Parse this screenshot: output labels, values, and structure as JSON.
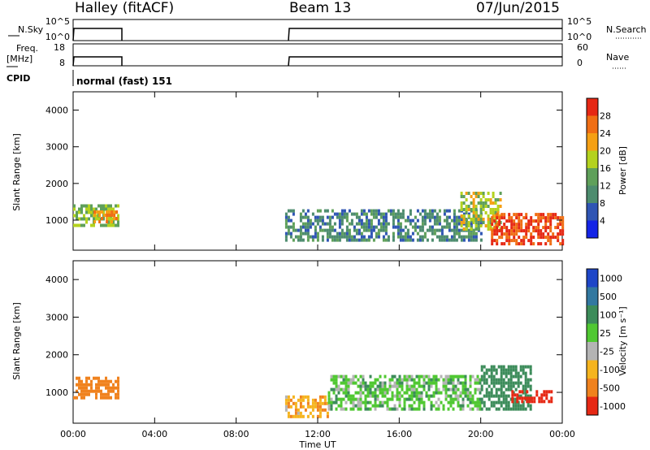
{
  "header": {
    "station": "Halley (fitACF)",
    "beam": "Beam 13",
    "date": "07/Jun/2015"
  },
  "sky_panel": {
    "label": "N.Sky",
    "left_ticks": [
      "10^5",
      "10^0"
    ],
    "right_ticks": [
      "10^5",
      "10^0"
    ],
    "right_label": "N.Search"
  },
  "freq_panel": {
    "label_line1": "Freq.",
    "label_line2": "[MHz]",
    "left_ticks": [
      "18",
      "8"
    ],
    "right_ticks": [
      "60",
      "0"
    ],
    "right_label": "Nave"
  },
  "cpid": {
    "label": "CPID",
    "mode": "normal (fast) 151"
  },
  "x_axis": {
    "title": "Time UT",
    "ticks": [
      "00:00",
      "04:00",
      "08:00",
      "12:00",
      "16:00",
      "20:00",
      "00:00"
    ]
  },
  "y_axis": {
    "title": "Slant Range [km]",
    "ticks": [
      "1000",
      "2000",
      "3000",
      "4000"
    ]
  },
  "power_colorbar": {
    "title": "Power [dB]",
    "ticks": [
      "4",
      "8",
      "12",
      "16",
      "20",
      "24",
      "28"
    ],
    "colors": [
      "#1424e6",
      "#2f55b4",
      "#4d8c6e",
      "#5fa05a",
      "#b4d21e",
      "#f5a014",
      "#f06e14",
      "#e62814"
    ]
  },
  "velocity_colorbar": {
    "title": "Velocity [m s⁻¹]",
    "ticks": [
      "1000",
      "500",
      "100",
      "25",
      "-25",
      "-100",
      "-500",
      "-1000"
    ],
    "colors": [
      "#1e46c8",
      "#3278a0",
      "#3c8c5a",
      "#50c832",
      "#b4b4b4",
      "#f5b41e",
      "#f0821e",
      "#e62814"
    ]
  },
  "chart_data": {
    "type": "heatmap",
    "x_range_hours": [
      0,
      24
    ],
    "y_range_km": [
      180,
      4500
    ],
    "data_gaps_hours": [
      [
        2.3,
        10.4
      ]
    ],
    "power_regions": [
      {
        "t": [
          0.0,
          2.25
        ],
        "range_km": [
          900,
          1500
        ],
        "level_db": 16
      },
      {
        "t": [
          1.0,
          2.1
        ],
        "range_km": [
          1000,
          1300
        ],
        "level_db": 24
      },
      {
        "t": [
          10.4,
          20.0
        ],
        "range_km": [
          500,
          1300
        ],
        "level_db": 10
      },
      {
        "t": [
          19.0,
          21.0
        ],
        "range_km": [
          800,
          1800
        ],
        "level_db": 18
      },
      {
        "t": [
          20.5,
          24.0
        ],
        "range_km": [
          400,
          1200
        ],
        "level_db": 28
      }
    ],
    "velocity_regions": [
      {
        "t": [
          0.0,
          2.25
        ],
        "range_km": [
          900,
          1500
        ],
        "velocity_ms": -300
      },
      {
        "t": [
          10.4,
          12.5
        ],
        "range_km": [
          400,
          1000
        ],
        "velocity_ms": -80
      },
      {
        "t": [
          12.5,
          20.0
        ],
        "range_km": [
          600,
          1500
        ],
        "velocity_ms": 60
      },
      {
        "t": [
          20.0,
          22.5
        ],
        "range_km": [
          600,
          1800
        ],
        "velocity_ms": 300
      },
      {
        "t": [
          21.5,
          23.5
        ],
        "range_km": [
          800,
          1100
        ],
        "velocity_ms": -600
      }
    ]
  }
}
